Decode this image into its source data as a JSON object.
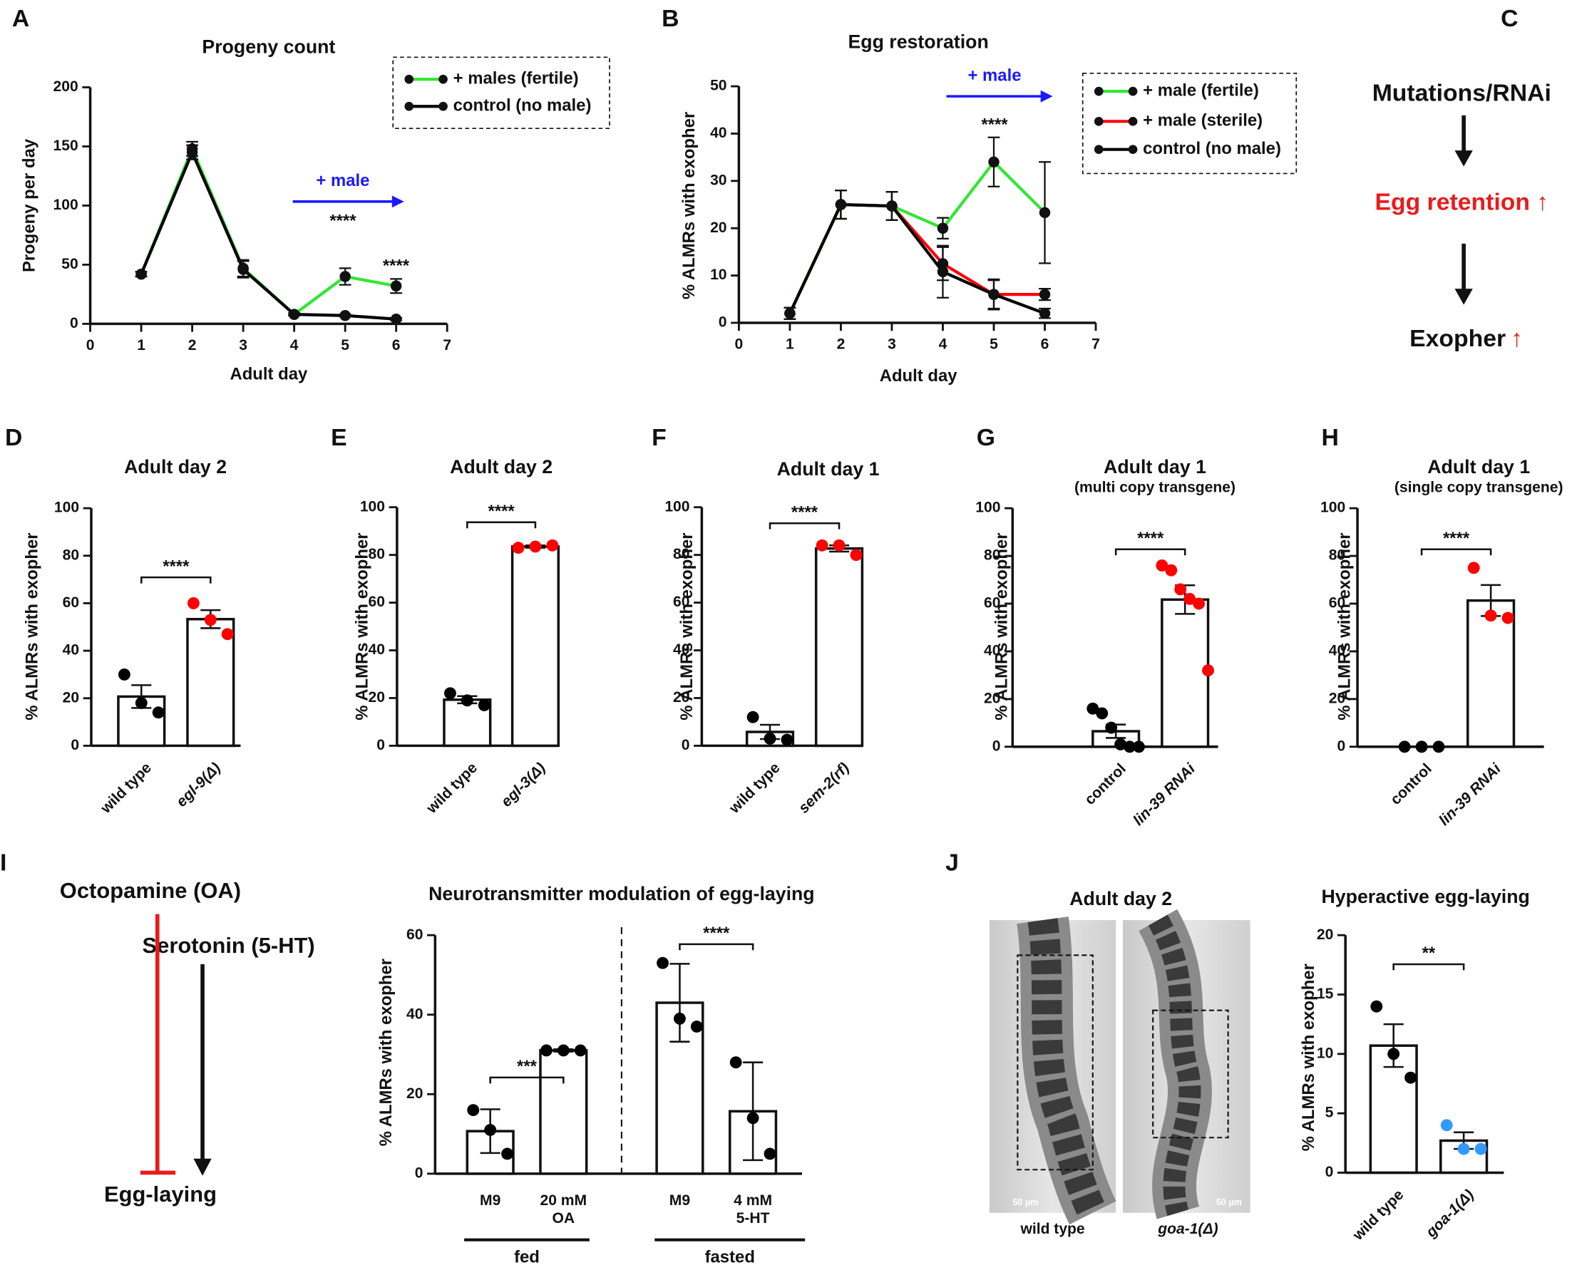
{
  "chart_data": [
    {
      "type": "line",
      "panel": "A",
      "title": "Progeny count",
      "x_label": "Adult day",
      "y_label": "Progeny per day",
      "xlim": [
        0,
        7
      ],
      "xticks": [
        0,
        1,
        2,
        3,
        4,
        5,
        6,
        7
      ],
      "ylim": [
        0,
        200
      ],
      "yticks": [
        0,
        50,
        100,
        150,
        200
      ],
      "legend": "upper right",
      "series": [
        {
          "name": "+ males (fertile)",
          "color": "#33e633",
          "x": [
            1,
            2,
            3,
            4,
            5,
            6
          ],
          "values": [
            42,
            148,
            47,
            8,
            40,
            32
          ],
          "errors": [
            2,
            6,
            7,
            1,
            7,
            6
          ]
        },
        {
          "name": "control (no male)",
          "color": "#000000",
          "x": [
            1,
            2,
            3,
            4,
            5,
            6
          ],
          "values": [
            42,
            145,
            46,
            8,
            7,
            4
          ],
          "errors": [
            2,
            6,
            7,
            1,
            1,
            1
          ]
        }
      ],
      "annotations": [
        "+ male",
        "****",
        "****"
      ]
    },
    {
      "type": "line",
      "panel": "B",
      "title": "Egg restoration",
      "x_label": "Adult day",
      "y_label": "% ALMRs with exopher",
      "xlim": [
        0,
        7
      ],
      "xticks": [
        0,
        1,
        2,
        3,
        4,
        5,
        6,
        7
      ],
      "ylim": [
        0,
        50
      ],
      "yticks": [
        0,
        10,
        20,
        30,
        40,
        50
      ],
      "legend": "upper right",
      "series": [
        {
          "name": "+ male (fertile)",
          "color": "#33e633",
          "x": [
            1,
            2,
            3,
            4,
            5,
            6
          ],
          "values": [
            2,
            25,
            24.7,
            20,
            34,
            23.3
          ],
          "errors": [
            1.2,
            3,
            3,
            2.2,
            5.2,
            10.7
          ]
        },
        {
          "name": "+ male (sterile)",
          "color": "#ff0000",
          "x": [
            1,
            2,
            3,
            4,
            5,
            6
          ],
          "values": [
            2,
            25,
            24.7,
            12.5,
            6,
            6
          ],
          "errors": [
            1.2,
            3,
            3,
            3.5,
            3.2,
            1.2
          ]
        },
        {
          "name": "control (no male)",
          "color": "#000000",
          "x": [
            1,
            2,
            3,
            4,
            5,
            6
          ],
          "values": [
            2,
            25,
            24.7,
            10.8,
            6,
            2
          ],
          "errors": [
            1.2,
            3,
            3,
            5.5,
            3,
            1
          ]
        }
      ],
      "annotations": [
        "+ male",
        "****"
      ]
    },
    {
      "type": "bar",
      "panel": "D",
      "title": "Adult day 2",
      "y_label": "% ALMRs with exopher",
      "categories": [
        "wild type",
        "egl-9(Δ)"
      ],
      "values": [
        20.7,
        53.3
      ],
      "errors": [
        4.8,
        3.8
      ],
      "points": [
        [
          30,
          18,
          14
        ],
        [
          60,
          53,
          47
        ]
      ],
      "point_colors": [
        "#000000",
        "#ff0000"
      ],
      "bar_color": "#ffffff",
      "ylim": [
        0,
        100
      ],
      "yticks": [
        0,
        20,
        40,
        60,
        80,
        100
      ],
      "annotations": [
        "****"
      ]
    },
    {
      "type": "bar",
      "panel": "E",
      "title": "Adult day 2",
      "y_label": "% ALMRs with exopher",
      "categories": [
        "wild type",
        "egl-3(Δ)"
      ],
      "values": [
        19.3,
        83.5
      ],
      "errors": [
        1.5,
        0.5
      ],
      "points": [
        [
          22,
          19,
          17
        ],
        [
          83,
          83.5,
          84
        ]
      ],
      "point_colors": [
        "#000000",
        "#ff0000"
      ],
      "bar_color": "#ffffff",
      "ylim": [
        0,
        100
      ],
      "yticks": [
        0,
        20,
        40,
        60,
        80,
        100
      ],
      "annotations": [
        "****"
      ]
    },
    {
      "type": "bar",
      "panel": "F",
      "title": "Adult day 1",
      "y_label": "% ALMRs with exopher",
      "categories": [
        "wild type",
        "sem-2(rf)"
      ],
      "values": [
        5.8,
        82.7
      ],
      "errors": [
        3,
        1.3
      ],
      "points": [
        [
          12,
          3,
          2.5
        ],
        [
          84,
          84,
          80
        ]
      ],
      "point_colors": [
        "#000000",
        "#ff0000"
      ],
      "bar_color": "#ffffff",
      "ylim": [
        0,
        100
      ],
      "yticks": [
        0,
        20,
        40,
        60,
        80,
        100
      ],
      "annotations": [
        "****"
      ]
    },
    {
      "type": "bar",
      "panel": "G",
      "title": "Adult day 1",
      "subtitle": "(multi copy transgene)",
      "y_label": "% ALMRs with exopher",
      "categories": [
        "control",
        "lin-39 RNAi"
      ],
      "values": [
        6.5,
        61.7
      ],
      "errors": [
        2.8,
        6
      ],
      "points": [
        [
          16,
          14,
          8,
          1,
          0,
          0
        ],
        [
          76,
          74,
          66,
          62,
          60,
          32
        ]
      ],
      "point_colors": [
        "#000000",
        "#ff0000"
      ],
      "bar_color": "#ffffff",
      "ylim": [
        0,
        100
      ],
      "yticks": [
        0,
        20,
        40,
        60,
        80,
        100
      ],
      "annotations": [
        "****"
      ]
    },
    {
      "type": "bar",
      "panel": "H",
      "title": "Adult day 1",
      "subtitle": "(single copy transgene)",
      "y_label": "% ALMRs with exopher",
      "categories": [
        "control",
        "lin-39 RNAi"
      ],
      "values": [
        0,
        61.3
      ],
      "errors": [
        0,
        6.5
      ],
      "points": [
        [
          0,
          0,
          0
        ],
        [
          75,
          55,
          54
        ]
      ],
      "point_colors": [
        "#000000",
        "#ff0000"
      ],
      "bar_color": "#ffffff",
      "ylim": [
        0,
        100
      ],
      "yticks": [
        0,
        20,
        40,
        60,
        80,
        100
      ],
      "annotations": [
        "****"
      ]
    },
    {
      "type": "bar",
      "title": "Neurotransmitter modulation of egg-laying",
      "y_label": "% ALMRs with exopher",
      "categories": [
        [
          "M9"
        ],
        [
          "20 mM",
          "OA"
        ],
        [
          "M9"
        ],
        [
          "4 mM",
          "5-HT"
        ]
      ],
      "groups": [
        "fed",
        "fasted"
      ],
      "values": [
        10.7,
        31,
        43,
        15.7
      ],
      "errors": [
        5.5,
        0.3,
        9.8,
        12.3
      ],
      "points": [
        [
          16,
          11,
          5
        ],
        [
          31,
          31,
          31
        ],
        [
          53,
          39,
          37
        ],
        [
          28,
          14,
          5
        ]
      ],
      "point_colors": [
        "#000000",
        "#000000",
        "#000000",
        "#000000"
      ],
      "bar_color": "#ffffff",
      "ylim": [
        0,
        60
      ],
      "yticks": [
        0,
        20,
        40,
        60
      ],
      "annotations": [
        "***",
        "****"
      ]
    },
    {
      "type": "bar",
      "title": "Hyperactive egg-laying",
      "y_label": "% ALMRs with exopher",
      "categories": [
        "wild type",
        "goa-1(Δ)"
      ],
      "values": [
        10.7,
        2.7
      ],
      "errors": [
        1.8,
        0.7
      ],
      "points": [
        [
          14,
          10,
          8
        ],
        [
          4,
          2,
          2
        ]
      ],
      "point_colors": [
        "#000000",
        "#3399ff"
      ],
      "bar_color": "#ffffff",
      "ylim": [
        0,
        20
      ],
      "yticks": [
        0,
        5,
        10,
        15,
        20
      ],
      "annotations": [
        "**"
      ]
    }
  ],
  "panel_C": {
    "panel": "C",
    "steps": [
      "Mutations/RNAi",
      "Egg retention ↑"
    ],
    "last": "Exopher",
    "up": "↑"
  },
  "panel_I": {
    "panel": "I",
    "inhibitor": "Octopamine (OA)",
    "activator": "Serotonin (5-HT)",
    "target": "Egg-laying"
  },
  "panel_J": {
    "panel": "J",
    "title": "Adult day 2",
    "images": [
      {
        "label": "wild type",
        "scale": "50 µm"
      },
      {
        "label": "goa-1(Δ)",
        "scale": "50 µm"
      }
    ]
  }
}
